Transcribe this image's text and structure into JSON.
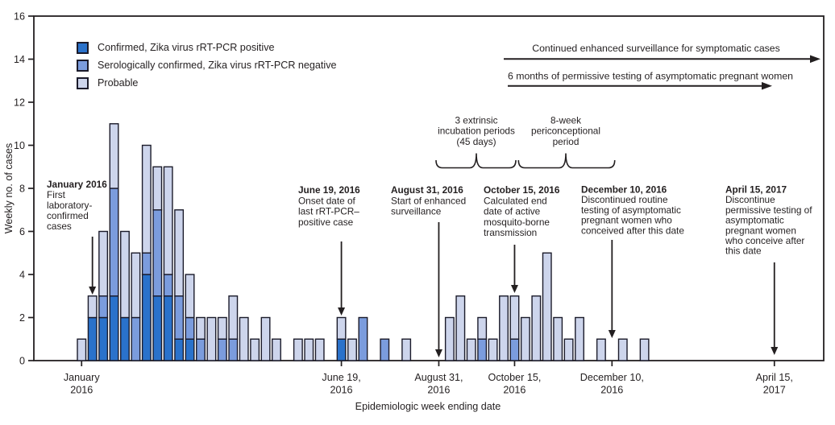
{
  "chart_data": {
    "type": "bar",
    "stacked": true,
    "title": "",
    "xlabel": "Epidemiologic week ending date",
    "ylabel": "Weekly no. of cases",
    "ylim": [
      0,
      16
    ],
    "yticks": [
      0,
      2,
      4,
      6,
      8,
      10,
      12,
      14,
      16
    ],
    "grid": false,
    "legend_position": "top-left-inside",
    "colors": {
      "ink": "#231f20",
      "bar_border": "#1b1b2a",
      "background": "#ffffff"
    },
    "series": [
      {
        "name": "Confirmed, Zika virus rRT-PCR positive",
        "color": "#2a72cb",
        "values": [
          0,
          2,
          2,
          3,
          2,
          0,
          4,
          3,
          3,
          1,
          1,
          0,
          0,
          0,
          0,
          0,
          0,
          0,
          0,
          0,
          0,
          0,
          0,
          0,
          1,
          0,
          0,
          0,
          0,
          0,
          0,
          0,
          0,
          0,
          0,
          0,
          0,
          0,
          0,
          0,
          0,
          0,
          0,
          0,
          0,
          0,
          0,
          0,
          0,
          0,
          0,
          0,
          0
        ]
      },
      {
        "name": "Serologically confirmed, Zika virus rRT-PCR negative",
        "color": "#7b9cdd",
        "values": [
          0,
          0,
          1,
          5,
          0,
          2,
          1,
          4,
          1,
          2,
          1,
          1,
          0,
          1,
          1,
          0,
          0,
          0,
          0,
          0,
          0,
          0,
          0,
          0,
          0,
          0,
          2,
          0,
          1,
          0,
          0,
          0,
          0,
          0,
          0,
          0,
          0,
          1,
          0,
          0,
          1,
          0,
          0,
          0,
          0,
          0,
          0,
          0,
          0,
          0,
          0,
          0,
          0
        ]
      },
      {
        "name": "Probable",
        "color": "#cdd5ec",
        "values": [
          1,
          1,
          3,
          3,
          4,
          3,
          5,
          2,
          5,
          4,
          2,
          1,
          2,
          1,
          2,
          2,
          1,
          2,
          1,
          0,
          1,
          1,
          1,
          0,
          1,
          1,
          0,
          0,
          0,
          0,
          1,
          0,
          0,
          0,
          2,
          3,
          1,
          1,
          1,
          3,
          2,
          2,
          3,
          5,
          2,
          1,
          2,
          0,
          1,
          0,
          1,
          0,
          1
        ]
      }
    ],
    "xticks": [
      {
        "week": 0,
        "lines": [
          "January",
          "2016"
        ]
      },
      {
        "week": 24,
        "lines": [
          "June 19,",
          "2016"
        ]
      },
      {
        "week": 33,
        "lines": [
          "August 31,",
          "2016"
        ]
      },
      {
        "week": 40,
        "lines": [
          "October 15,",
          "2016"
        ]
      },
      {
        "week": 49,
        "lines": [
          "December 10,",
          "2016"
        ]
      },
      {
        "week": 64,
        "lines": [
          "April 15,",
          "2017"
        ]
      }
    ],
    "annotations": [
      {
        "id": "jan-2016",
        "week": 1,
        "date_label": "January 2016",
        "lines": [
          "First",
          "laboratory-",
          "confirmed",
          "cases"
        ]
      },
      {
        "id": "jun-19",
        "week": 24,
        "date_label": "June 19, 2016",
        "lines": [
          "Onset date of",
          "last rRT-PCR–",
          "positive case"
        ]
      },
      {
        "id": "aug-31",
        "week": 33,
        "date_label": "August 31, 2016",
        "lines": [
          "Start of enhanced",
          "surveillance"
        ]
      },
      {
        "id": "oct-15",
        "week": 40,
        "date_label": "October 15, 2016",
        "lines": [
          "Calculated end",
          "date of active",
          "mosquito-borne",
          "transmission"
        ]
      },
      {
        "id": "dec-10",
        "week": 49,
        "date_label": "December 10, 2016",
        "lines": [
          "Discontinued routine",
          "testing of asymptomatic",
          "pregnant women who",
          "conceived after this date"
        ]
      },
      {
        "id": "apr-15",
        "week": 64,
        "date_label": "April 15, 2017",
        "lines": [
          "Discontinue",
          "permissive testing of",
          "asymptomatic",
          "pregnant women",
          "who conceive after",
          "this date"
        ]
      }
    ],
    "range_arrows": [
      {
        "label": "Continued enhanced surveillance for symptomatic cases"
      },
      {
        "label": "6 months of permissive testing of asymptomatic pregnant women"
      }
    ],
    "braces": [
      {
        "lines": [
          "3 extrinsic",
          "incubation periods",
          "(45 days)"
        ]
      },
      {
        "lines": [
          "8-week",
          "periconceptional",
          "period"
        ]
      }
    ]
  }
}
